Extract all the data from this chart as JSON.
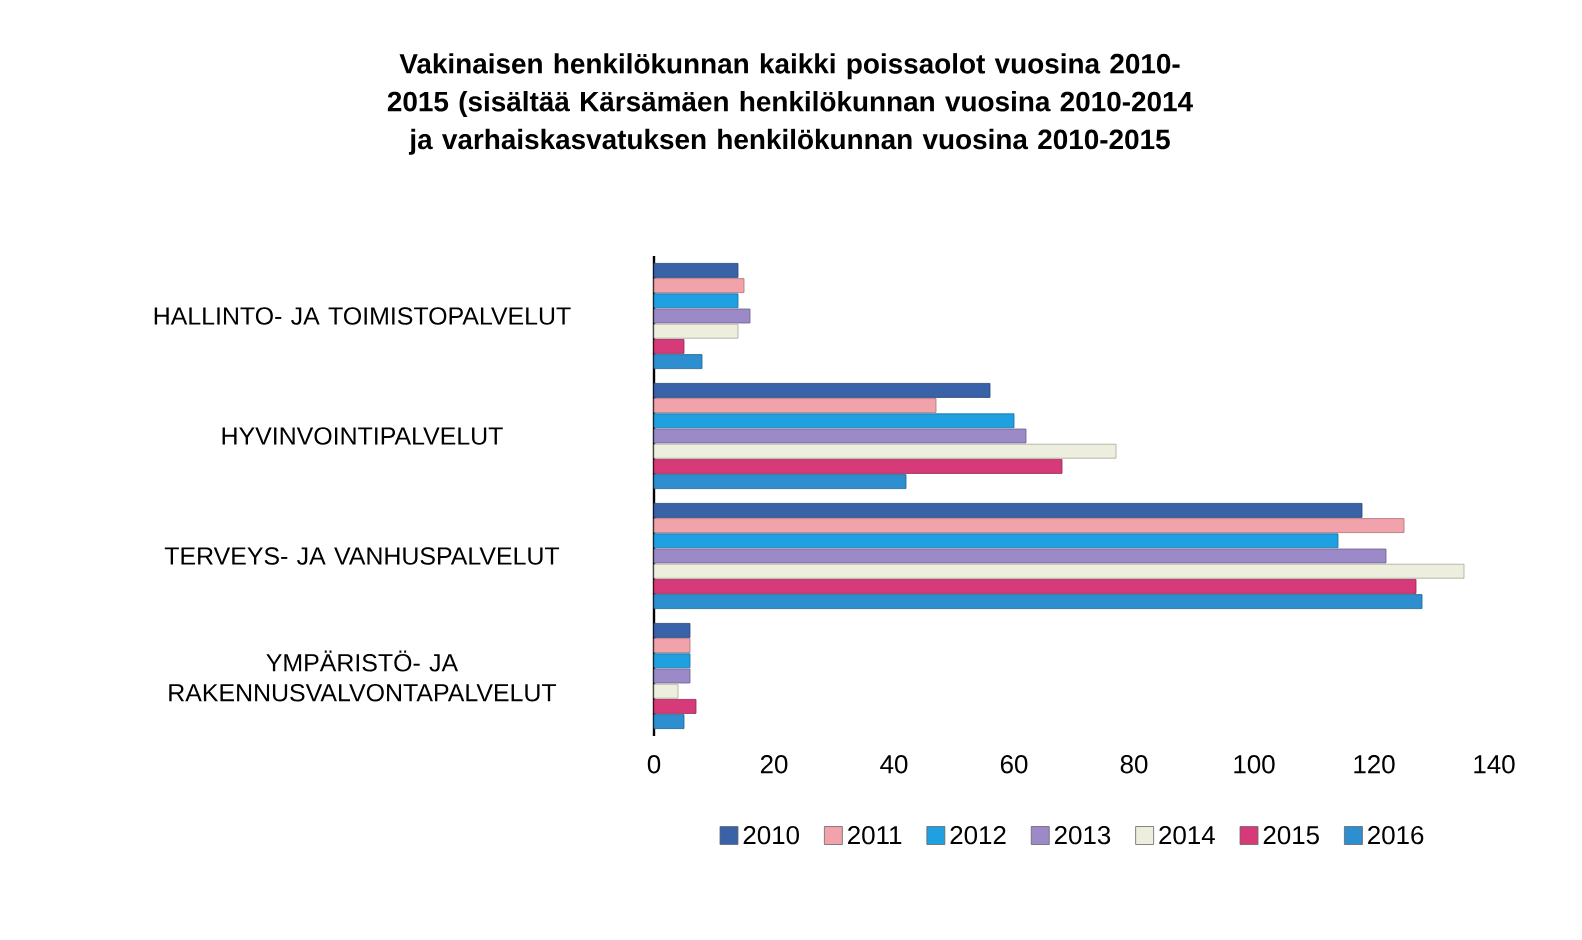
{
  "chart_data": {
    "type": "bar",
    "orientation": "horizontal",
    "title": "Vakinaisen henkilökunnan kaikki poissaolot vuosina 2010-2015 (sisältää Kärsämäen henkilökunnan vuosina 2010-2014 ja varhaiskasvatuksen henkilökunnan vuosina 2010-2015",
    "categories": [
      "HALLINTO- JA TOIMISTOPALVELUT",
      "HYVINVOINTIPALVELUT",
      "TERVEYS- JA VANHUSPALVELUT",
      "YMPÄRISTÖ- JA RAKENNUSVALVONTAPALVELUT"
    ],
    "series": [
      {
        "name": "2010",
        "color": "#3a62a8",
        "values": [
          14,
          56,
          118,
          6
        ]
      },
      {
        "name": "2011",
        "color": "#f2a2aa",
        "values": [
          15,
          47,
          125,
          6
        ]
      },
      {
        "name": "2012",
        "color": "#1fa0e0",
        "values": [
          14,
          60,
          114,
          6
        ]
      },
      {
        "name": "2013",
        "color": "#9c8ac8",
        "values": [
          16,
          62,
          122,
          6
        ]
      },
      {
        "name": "2014",
        "color": "#eeeede",
        "values": [
          14,
          77,
          135,
          4
        ]
      },
      {
        "name": "2015",
        "color": "#d63a78",
        "values": [
          5,
          68,
          127,
          7
        ]
      },
      {
        "name": "2016",
        "color": "#2d8fd0",
        "values": [
          8,
          42,
          128,
          5
        ]
      }
    ],
    "xlim": [
      0,
      140
    ],
    "xticks": [
      0,
      20,
      40,
      60,
      80,
      100,
      120,
      140
    ],
    "grid": false,
    "legend": "bottom"
  }
}
